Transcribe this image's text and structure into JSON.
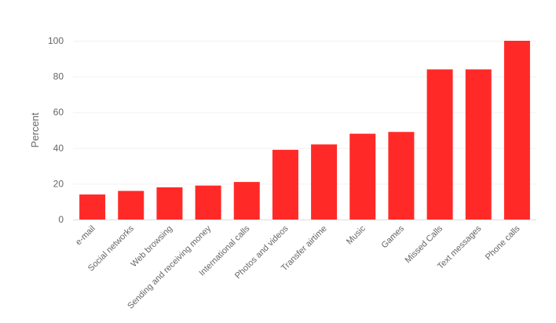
{
  "chart_data": {
    "type": "bar",
    "title": "",
    "xlabel": "",
    "ylabel": "Percent",
    "ylim": [
      0,
      100
    ],
    "yticks": [
      0,
      20,
      40,
      60,
      80,
      100
    ],
    "grid": true,
    "bar_color": "#ff2a27",
    "categories": [
      "e-mail",
      "Social networks",
      "Web browsing",
      "Sending and receiving money",
      "International calls",
      "Photos and videos",
      "Transfer airtime",
      "Music",
      "Games",
      "Missed Calls",
      "Text messages",
      "Phone calls"
    ],
    "values": [
      14,
      16,
      18,
      19,
      21,
      39,
      42,
      48,
      49,
      84,
      84,
      100
    ]
  }
}
